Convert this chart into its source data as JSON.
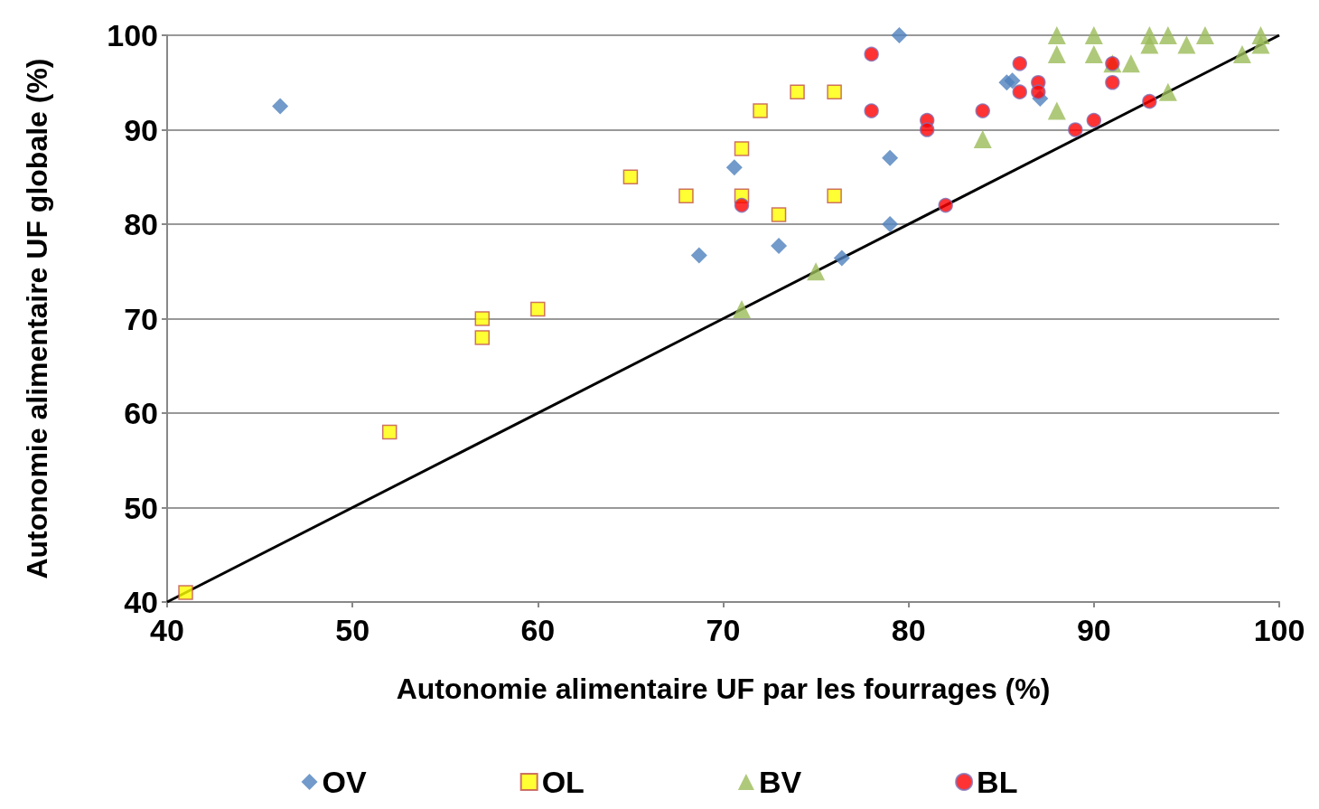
{
  "chart_data": {
    "type": "scatter",
    "xlabel": "Autonomie alimentaire UF par les fourrages (%)",
    "ylabel": "Autonomie alimentaire UF globale (%)",
    "xlim": [
      40,
      100
    ],
    "xticks": [
      40,
      50,
      60,
      70,
      80,
      90,
      100
    ],
    "ylim": [
      40,
      100
    ],
    "yticks": [
      40,
      50,
      60,
      70,
      80,
      90,
      100
    ],
    "grid": "y",
    "legend": "bottom",
    "series": [
      {
        "name": "OV",
        "color": "#4f81bd",
        "marker": "diamond",
        "x": [
          46.1,
          79.5,
          70.6,
          68.7,
          73,
          76.4,
          79,
          79,
          85.3,
          85.6,
          87.1
        ],
        "values": [
          92.5,
          100,
          86,
          76.7,
          77.7,
          76.4,
          87,
          80,
          95,
          95.2,
          93.3
        ]
      },
      {
        "name": "OL",
        "color": "#ffff00",
        "marker": "square",
        "x": [
          41,
          52,
          57,
          57,
          60,
          65,
          68,
          71,
          71,
          72,
          73,
          74,
          76,
          76
        ],
        "values": [
          41,
          58,
          70,
          68,
          71,
          85,
          83,
          88,
          83,
          92,
          81,
          94,
          94,
          83
        ]
      },
      {
        "name": "BV",
        "color": "#9bbb59",
        "marker": "triangle",
        "x": [
          71,
          75,
          84,
          88,
          88,
          88,
          90,
          90,
          91,
          92,
          93,
          93,
          94,
          94,
          95,
          96,
          98,
          99,
          99
        ],
        "values": [
          71,
          75,
          89,
          100,
          98,
          92,
          100,
          98,
          97,
          97,
          100,
          99,
          100,
          94,
          99,
          100,
          98,
          100,
          99
        ]
      },
      {
        "name": "BL",
        "color": "#ff0000",
        "marker": "circle",
        "x": [
          78,
          78,
          71,
          81,
          81,
          82,
          84,
          86,
          86,
          87,
          87,
          89,
          90,
          91,
          91,
          93
        ],
        "values": [
          98,
          92,
          82,
          91,
          90,
          82,
          92,
          97,
          94,
          95,
          94,
          90,
          91,
          97,
          95,
          93
        ]
      },
      {
        "type": "line",
        "color": "#000000",
        "marker": "none",
        "x": [
          40,
          100
        ],
        "values": [
          40,
          100
        ]
      }
    ]
  }
}
